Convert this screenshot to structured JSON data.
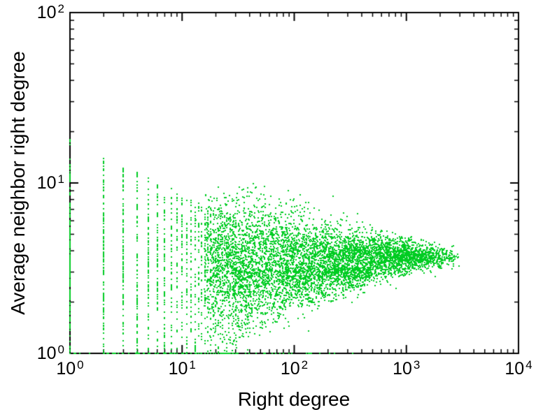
{
  "figure": {
    "background": "#ffffff",
    "axis_color": "#000000"
  },
  "chart_data": {
    "type": "scatter",
    "title": "",
    "xlabel": "Right degree",
    "ylabel": "Average neighbor right degree",
    "x_scale": "log10",
    "y_scale": "log10",
    "xlim": [
      1,
      10000
    ],
    "ylim": [
      1,
      100
    ],
    "tick_base": 10,
    "x_tick_exponents": [
      0,
      1,
      2,
      3,
      4
    ],
    "y_tick_exponents": [
      0,
      1,
      2
    ],
    "minor_ticks": true,
    "grid": false,
    "legend": null,
    "series": [
      {
        "name": "average-neighbor-right-degree",
        "color": "#00cc22",
        "marker": "dot",
        "marker_size_px": 2,
        "point_cloud": {
          "seed": 1337,
          "integer_columns": {
            "k_min": 1,
            "k_max": 30,
            "count_scale": 220,
            "count_decay_exp": 0.7,
            "upper_at_1": 18,
            "upper_decay_exp": 0.32,
            "uniform_fraction": 0.55,
            "gauss_center": 3.6,
            "gauss_lnsd": 0.5
          },
          "main_cloud": {
            "count": 6000,
            "log10x_min": 1.2,
            "log10x_max": 3.48,
            "taper_start": 3.0,
            "center_y_left": 3.55,
            "center_y_right": 3.7,
            "lnsd_left": 0.42,
            "lnsd_right": 0.06
          },
          "lower_tail": {
            "count": 900,
            "log10x_min": 1.45,
            "log10x_max": 2.7,
            "envelope_log10x_zero": 1.55,
            "envelope_slope": 0.35,
            "cloud_bottom_y": 3.2
          },
          "baseline_row": {
            "count": 70,
            "log10x_min": 0.0,
            "log10x_max": 2.6,
            "y": 1.0
          },
          "outliers": {
            "count": 28,
            "log10x_min": 1.1,
            "log10x_max": 2.3,
            "y_min": 6.0,
            "y_max": 9.5
          }
        }
      }
    ]
  }
}
